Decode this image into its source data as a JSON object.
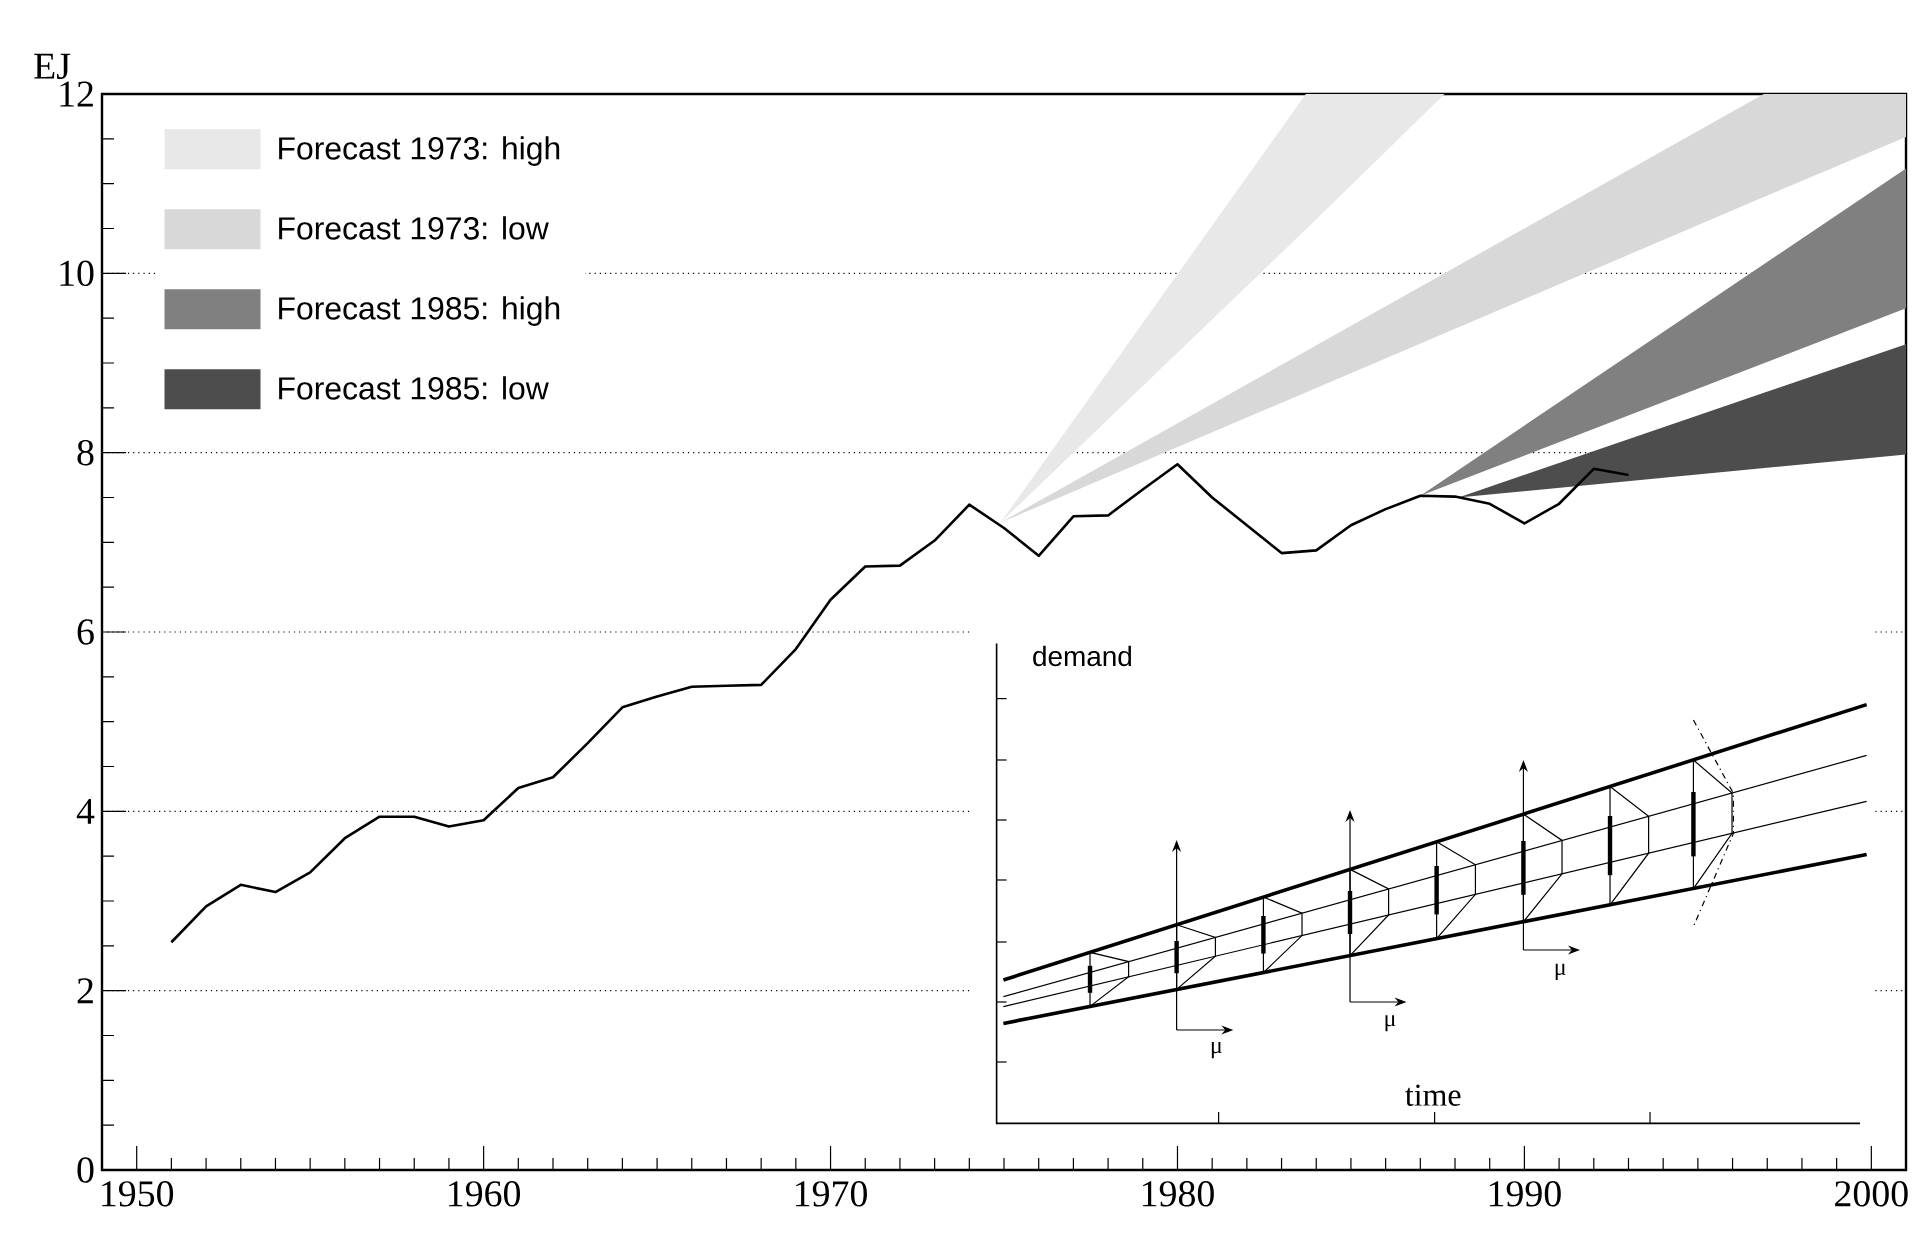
{
  "chart_data": [
    {
      "type": "line",
      "ylabel": "EJ",
      "xlim": [
        1949,
        2001
      ],
      "ylim": [
        0,
        12
      ],
      "xticks": [
        1950,
        1960,
        1970,
        1980,
        1990,
        2000
      ],
      "yticks": [
        0,
        2,
        4,
        6,
        8,
        10,
        12
      ],
      "grid": "y",
      "legend": "top left",
      "series": [
        {
          "color": "#000000",
          "x": [
            1951,
            1952,
            1953,
            1954,
            1955,
            1956,
            1957,
            1958,
            1959,
            1960,
            1961,
            1962,
            1963,
            1964,
            1965,
            1966,
            1967,
            1968,
            1969,
            1970,
            1971,
            1972,
            1973,
            1974,
            1975,
            1976,
            1977,
            1978,
            1979,
            1980,
            1981,
            1982,
            1983,
            1984,
            1985,
            1986,
            1987,
            1988,
            1989,
            1990,
            1991,
            1992,
            1993
          ],
          "values": [
            2.54,
            2.94,
            3.18,
            3.1,
            3.32,
            3.7,
            3.94,
            3.94,
            3.83,
            3.9,
            4.26,
            4.38,
            4.76,
            5.16,
            5.28,
            5.39,
            5.4,
            5.41,
            5.81,
            6.36,
            6.73,
            6.74,
            7.02,
            7.42,
            7.16,
            6.85,
            7.29,
            7.3,
            7.59,
            7.87,
            7.5,
            7.19,
            6.88,
            6.91,
            7.19,
            7.37,
            7.52,
            7.51,
            7.43,
            7.21,
            7.43,
            7.82,
            7.75
          ]
        },
        {
          "name": "Forecast 1973: high",
          "type": "area",
          "color": "#e8e8e8",
          "x": [
            1974.9,
            1983.7,
            1987.7
          ],
          "values": [
            null,
            null,
            null
          ],
          "lower": [
            7.22,
            10.49,
            12
          ],
          "upper": [
            7.22,
            12,
            12
          ]
        },
        {
          "name": "Forecast 1973: low",
          "type": "area",
          "color": "#d8d8d8",
          "x": [
            1974.9,
            1996.9,
            2001
          ],
          "values": [
            null,
            null,
            null
          ],
          "lower": [
            7.22,
            10.85,
            11.52
          ],
          "upper": [
            7.22,
            12,
            12
          ]
        },
        {
          "name": "Forecast 1985: high",
          "type": "area",
          "color": "#808080",
          "x": [
            1987,
            2001
          ],
          "values": [
            null,
            null
          ],
          "lower": [
            7.52,
            9.61
          ],
          "upper": [
            7.52,
            11.17
          ]
        },
        {
          "name": "Forecast 1985: low",
          "type": "area",
          "color": "#4d4d4d",
          "x": [
            1988.1,
            2001
          ],
          "values": [
            null,
            null
          ],
          "lower": [
            7.5,
            7.98
          ],
          "upper": [
            7.5,
            9.21
          ]
        }
      ]
    },
    {
      "type": "other",
      "xlabel": "time",
      "ylabel": "demand",
      "annotations": [
        "μ",
        "μ",
        "μ"
      ]
    }
  ]
}
